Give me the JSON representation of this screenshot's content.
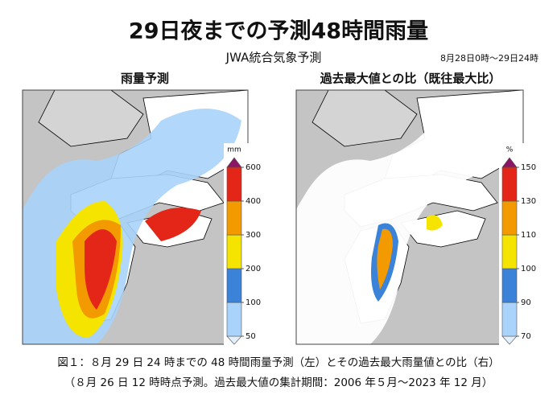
{
  "title": "29日夜までの予測48時間雨量",
  "source": "JWA統合気象予測",
  "period": "8月28日0時～29日24時",
  "panels": [
    {
      "title": "雨量予測",
      "legend": {
        "unit": "mm",
        "ticks": [
          50,
          100,
          200,
          300,
          400,
          600
        ],
        "colors": [
          "#e3f1ff",
          "#a9d3fa",
          "#3b82d9",
          "#f4e400",
          "#f39a00",
          "#e32618",
          "#8a1766"
        ]
      }
    },
    {
      "title": "過去最大値との比（既往最大比）",
      "legend": {
        "unit": "%",
        "ticks": [
          70,
          90,
          100,
          110,
          130,
          150
        ],
        "colors": [
          "#e3f1ff",
          "#a9d3fa",
          "#3b82d9",
          "#f4e400",
          "#f39a00",
          "#e32618",
          "#8a1766"
        ]
      }
    }
  ],
  "caption": [
    "図１：８月 29 日 24 時までの 48 時間雨量予測（左）とその過去最大雨量値との比（右）",
    "（８月 26 日 12 時時点予測。過去最大値の集計期間：2006 年５月～2023 年 12 月）"
  ]
}
